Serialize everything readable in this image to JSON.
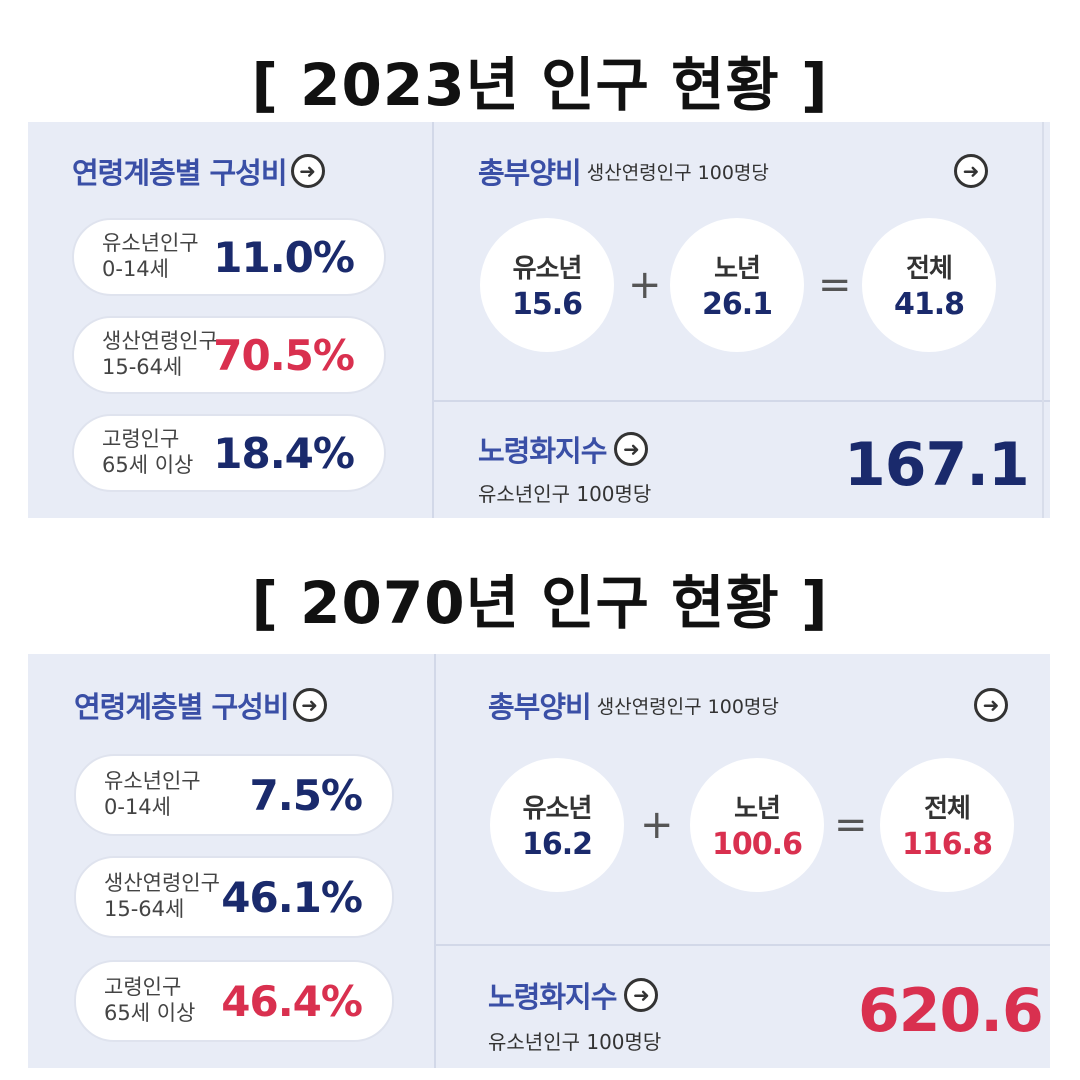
{
  "sections": [
    {
      "title": "[ 2023년 인구 현황 ]",
      "age_composition": {
        "title": "연령계층별 구성비",
        "items": [
          {
            "label1": "유소년인구",
            "label2": "0-14세",
            "value": "11.0%",
            "color": "#1a2a6c"
          },
          {
            "label1": "생산연령인구",
            "label2": "15-64세",
            "value": "70.5%",
            "color": "#d9304f"
          },
          {
            "label1": "고령인구",
            "label2": "65세 이상",
            "value": "18.4%",
            "color": "#1a2a6c"
          }
        ]
      },
      "dependency": {
        "title": "총부양비",
        "subtitle": "생산연령인구 100명당",
        "youth": {
          "label": "유소년",
          "value": "15.6",
          "color": "#1a2a6c"
        },
        "plus": "+",
        "elderly": {
          "label": "노년",
          "value": "26.1",
          "color": "#1a2a6c"
        },
        "equals": "=",
        "total": {
          "label": "전체",
          "value": "41.8",
          "color": "#1a2a6c"
        }
      },
      "aging_index": {
        "title": "노령화지수",
        "subtitle": "유소년인구 100명당",
        "value": "167.1",
        "color": "#1a2a6c"
      }
    },
    {
      "title": "[ 2070년 인구 현황 ]",
      "age_composition": {
        "title": "연령계층별 구성비",
        "items": [
          {
            "label1": "유소년인구",
            "label2": "0-14세",
            "value": "7.5%",
            "color": "#1a2a6c"
          },
          {
            "label1": "생산연령인구",
            "label2": "15-64세",
            "value": "46.1%",
            "color": "#1a2a6c"
          },
          {
            "label1": "고령인구",
            "label2": "65세 이상",
            "value": "46.4%",
            "color": "#d9304f"
          }
        ]
      },
      "dependency": {
        "title": "총부양비",
        "subtitle": "생산연령인구 100명당",
        "youth": {
          "label": "유소년",
          "value": "16.2",
          "color": "#1a2a6c"
        },
        "plus": "+",
        "elderly": {
          "label": "노년",
          "value": "100.6",
          "color": "#d9304f"
        },
        "equals": "=",
        "total": {
          "label": "전체",
          "value": "116.8",
          "color": "#d9304f"
        }
      },
      "aging_index": {
        "title": "노령화지수",
        "subtitle": "유소년인구 100명당",
        "value": "620.6",
        "color": "#d9304f"
      }
    }
  ],
  "icons": {
    "arrow": "arrow-right-circle-icon",
    "arrow_glyph": "➜"
  }
}
